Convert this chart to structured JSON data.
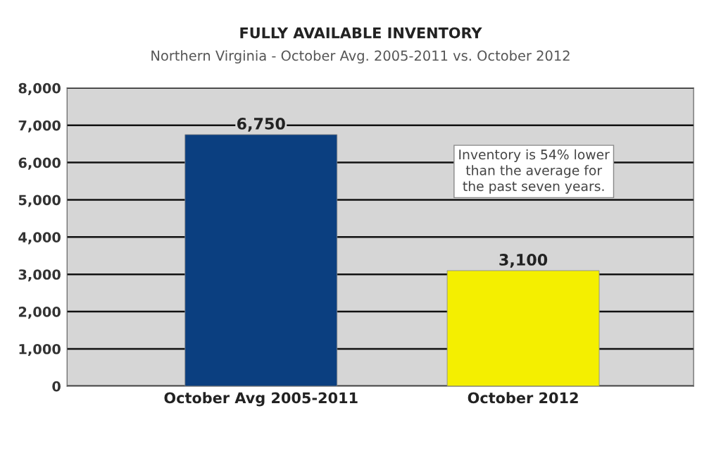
{
  "chart_data": {
    "type": "bar",
    "title": "FULLY AVAILABLE INVENTORY",
    "subtitle": "Northern Virginia - October Avg. 2005-2011 vs. October 2012",
    "categories": [
      "October Avg 2005-2011",
      "October 2012"
    ],
    "values": [
      6750,
      3100
    ],
    "colors": [
      "#0b3f80",
      "#f4ef00"
    ],
    "ylim": [
      0,
      8000
    ],
    "yticks": [
      {
        "value": 0,
        "label": "0"
      },
      {
        "value": 1000,
        "label": "1,000"
      },
      {
        "value": 2000,
        "label": "2,000"
      },
      {
        "value": 3000,
        "label": "3,000"
      },
      {
        "value": 4000,
        "label": "4,000"
      },
      {
        "value": 5000,
        "label": "5,000"
      },
      {
        "value": 6000,
        "label": "6,000"
      },
      {
        "value": 7000,
        "label": "7,000"
      },
      {
        "value": 8000,
        "label": "8,000"
      }
    ],
    "grid": "y",
    "value_labels": [
      "6,750",
      "3,100"
    ],
    "annotations": [
      "Inventory is 54% lower\nthan the average for\nthe past seven years."
    ]
  }
}
